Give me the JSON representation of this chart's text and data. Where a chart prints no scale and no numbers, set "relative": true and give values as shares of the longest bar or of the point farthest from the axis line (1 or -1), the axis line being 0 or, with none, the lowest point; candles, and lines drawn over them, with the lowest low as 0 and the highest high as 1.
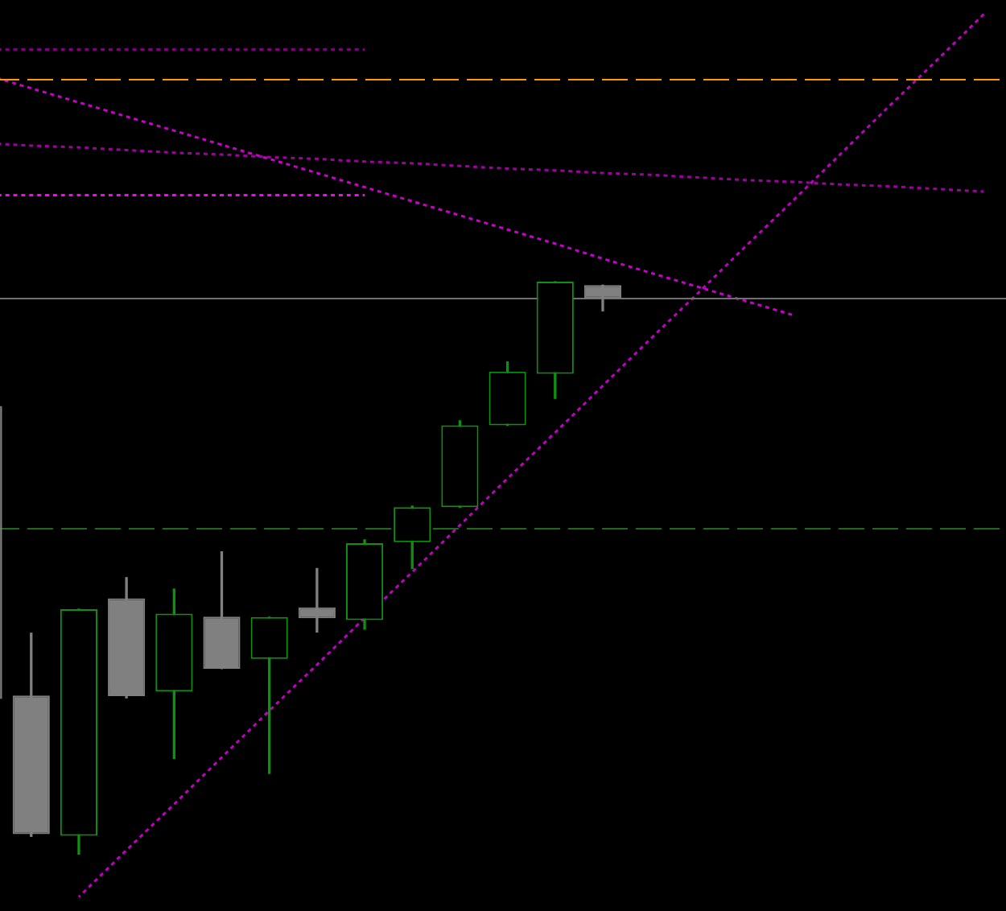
{
  "chart_data": [
    {
      "type": "candlestick",
      "relative": true,
      "categories": [
        null,
        null,
        null,
        null,
        null,
        null,
        null,
        null,
        null,
        null,
        null,
        null,
        null,
        null,
        null,
        null,
        null,
        null,
        null,
        null,
        null,
        null
      ],
      "ohlc": [
        [
          0.783,
          0.783,
          0.271,
          0.271
        ],
        [
          0.277,
          0.386,
          0.031,
          0.035
        ],
        [
          0.032,
          0.428,
          0,
          0.428
        ],
        [
          0.447,
          0.483,
          0.273,
          0.276
        ],
        [
          0.284,
          0.463,
          0.167,
          0.42
        ],
        [
          0.415,
          0.528,
          0.324,
          0.324
        ],
        [
          0.341,
          0.414,
          0.141,
          0.414
        ],
        [
          0.431,
          0.499,
          0.388,
          0.412
        ],
        [
          0.409,
          0.549,
          0.393,
          0.543
        ],
        [
          0.545,
          0.608,
          0.499,
          0.606
        ],
        [
          0.606,
          0.757,
          0.606,
          0.749
        ],
        [
          0.749,
          0.86,
          0.749,
          0.843
        ],
        [
          0.839,
          1,
          0.796,
          1
        ],
        [
          0.994,
          0.994,
          0.949,
          0.971
        ],
        null,
        null,
        null,
        null,
        null,
        null,
        null,
        null
      ],
      "colors": [
        "#808080",
        "#808080",
        "#109010",
        "#808080",
        "#109010",
        "#808080",
        "#109010",
        "#808080",
        "#109010",
        "#109010",
        "#109010",
        "#109010",
        "#109010",
        "#808080",
        null,
        null,
        null,
        null,
        null,
        null,
        null,
        null
      ],
      "ref_lines": [
        {
          "axis": "y",
          "value": 1.353,
          "color": "#ff9900",
          "line_style": "dashed"
        },
        {
          "axis": "y",
          "value": 0.971,
          "color": "#707070",
          "line_style": "solid"
        },
        {
          "axis": "y",
          "value": 0.571,
          "color": "#1a6b1a",
          "line_style": "dashed"
        }
      ]
    },
    {
      "type": "line",
      "relative": true,
      "categories": [
        null,
        null,
        null,
        null,
        null,
        null,
        null,
        null,
        null,
        null,
        null,
        null,
        null,
        null,
        null,
        null,
        null,
        null,
        null,
        null,
        null,
        null
      ],
      "series": [
        {
          "color": "#cc00cc",
          "line_style": "dotted",
          "values": [
            0.932,
            0.916,
            0.9,
            0.884,
            0.868,
            0.852,
            0.836,
            0.82,
            0.804,
            0.788,
            0.772,
            0.756,
            0.74,
            0.723,
            0.707,
            0.691,
            0.675,
            0.659,
            null,
            null,
            null,
            null
          ]
        },
        {
          "color": "#a000a0",
          "line_style": "dotted",
          "values": [
            0.854,
            0.851,
            0.849,
            0.846,
            0.843,
            0.841,
            0.838,
            0.836,
            0.833,
            0.831,
            0.828,
            0.825,
            0.823,
            0.82,
            0.818,
            0.815,
            0.812,
            0.81,
            0.807,
            0.805,
            0.802,
            0.799
          ]
        },
        {
          "color": "#c000c0",
          "line_style": "dotted",
          "values": [
            null,
            null,
            0,
            0.053,
            0.105,
            0.158,
            0.211,
            0.263,
            0.316,
            0.368,
            0.421,
            0.474,
            0.526,
            0.579,
            0.632,
            0.684,
            0.737,
            0.789,
            0.842,
            0.895,
            0.947,
            1
          ]
        },
        {
          "color": "#800080",
          "line_style": "dotted",
          "values": [
            0.96,
            0.96,
            0.96,
            0.96,
            0.96,
            0.96,
            0.96,
            0.96,
            0.96,
            null,
            null,
            null,
            null,
            null,
            null,
            null,
            null,
            null,
            null,
            null,
            null,
            null
          ]
        },
        {
          "color": "#ff00ff",
          "line_style": "dotted",
          "values": [
            0.795,
            0.795,
            0.795,
            0.795,
            0.795,
            0.795,
            0.795,
            0.795,
            0.795,
            null,
            null,
            null,
            null,
            null,
            null,
            null,
            null,
            null,
            null,
            null,
            null,
            null
          ]
        }
      ]
    }
  ]
}
